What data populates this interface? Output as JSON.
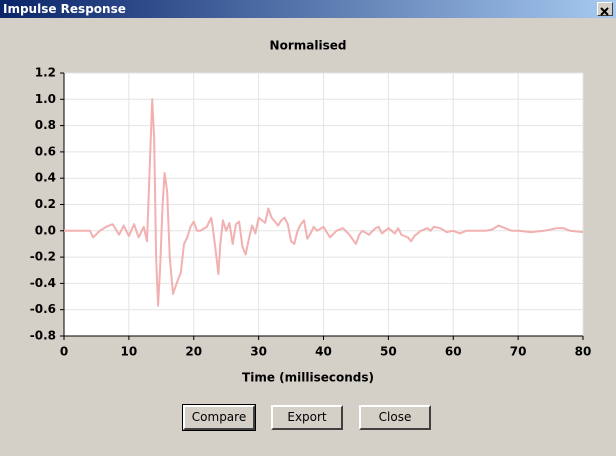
{
  "window": {
    "title": "Impulse Response"
  },
  "chart_data": {
    "type": "line",
    "title": "Normalised",
    "x_label": "Time (milliseconds)",
    "x": [
      0,
      4,
      4.5,
      5.5,
      6.5,
      7.5,
      8.5,
      9.2,
      10,
      10.8,
      11.5,
      12.3,
      12.8,
      13.3,
      13.6,
      13.9,
      14.2,
      14.5,
      14.8,
      15.2,
      15.5,
      15.9,
      16.3,
      16.8,
      17.5,
      18,
      18.5,
      19,
      19.5,
      20,
      20.5,
      21,
      22,
      22.7,
      23,
      23.5,
      23.8,
      24.1,
      24.5,
      25,
      25.5,
      26,
      26.5,
      27,
      27.5,
      28,
      28.5,
      29,
      29.5,
      30,
      31,
      31.5,
      32,
      33,
      33.5,
      34,
      34.5,
      35,
      35.5,
      36,
      36.5,
      37,
      37.5,
      38,
      38.5,
      39,
      40,
      41,
      42,
      43,
      44,
      45,
      45.5,
      46,
      47,
      48,
      48.5,
      49,
      50,
      51,
      51.5,
      52,
      53,
      53.5,
      54,
      55,
      56,
      56.5,
      57,
      58,
      59,
      60,
      61,
      62,
      63,
      64,
      65,
      66,
      67,
      68,
      69,
      70,
      72,
      74,
      76,
      77,
      78,
      80
    ],
    "series": [
      {
        "color": "#f2b0b0",
        "values": [
          0,
          0,
          -0.05,
          0,
          0.03,
          0.05,
          -0.03,
          0.04,
          -0.04,
          0.05,
          -0.05,
          0.03,
          -0.08,
          0.6,
          1.0,
          0.7,
          -0.2,
          -0.57,
          -0.3,
          0.2,
          0.44,
          0.3,
          -0.2,
          -0.48,
          -0.38,
          -0.32,
          -0.1,
          -0.05,
          0.03,
          0.07,
          0,
          0,
          0.03,
          0.1,
          0,
          -0.2,
          -0.33,
          -0.1,
          0.08,
          0,
          0.06,
          -0.1,
          0.05,
          0.07,
          -0.12,
          -0.18,
          -0.06,
          0.04,
          -0.02,
          0.1,
          0.06,
          0.17,
          0.1,
          0.04,
          0.08,
          0.1,
          0.05,
          -0.08,
          -0.1,
          0,
          0.05,
          0.08,
          -0.06,
          -0.02,
          0.03,
          0,
          0.03,
          -0.05,
          0,
          0.02,
          -0.03,
          -0.1,
          -0.03,
          0,
          -0.03,
          0.02,
          0.03,
          -0.02,
          0.02,
          -0.02,
          0.02,
          -0.03,
          -0.05,
          -0.08,
          -0.04,
          0,
          0.02,
          0,
          0.03,
          0.02,
          -0.01,
          0,
          -0.02,
          0,
          0,
          0,
          0,
          0.01,
          0.04,
          0.02,
          0,
          0,
          -0.01,
          0,
          0.02,
          0.02,
          0,
          -0.01
        ]
      }
    ],
    "xlim": [
      0,
      80
    ],
    "xticks": [
      0,
      10,
      20,
      30,
      40,
      50,
      60,
      70,
      80
    ],
    "ylim": [
      -0.8,
      1.2
    ],
    "yticks": [
      -0.8,
      -0.6,
      -0.4,
      -0.2,
      {
        "value": 0,
        "label": "0.0"
      },
      0.2,
      0.4,
      0.6,
      0.8,
      {
        "value": 1,
        "label": "1.0"
      },
      1.2
    ],
    "grid": true
  },
  "buttons": [
    "Compare",
    "Export",
    "Close"
  ]
}
